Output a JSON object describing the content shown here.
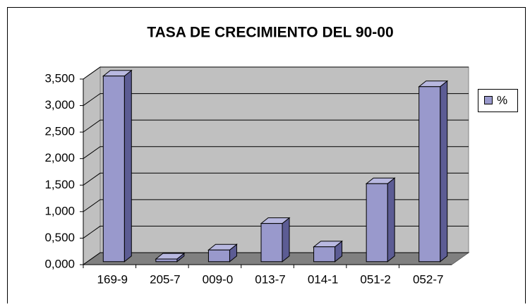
{
  "chart_data": {
    "type": "bar3d",
    "title": "TASA DE CRECIMIENTO DEL 90-00",
    "categories": [
      "169-9",
      "205-7",
      "009-0",
      "013-7",
      "014-1",
      "051-2",
      "052-7"
    ],
    "series": [
      {
        "name": "%",
        "color": "#9999cc",
        "values": [
          3.5,
          0.05,
          0.22,
          0.72,
          0.28,
          1.47,
          3.3
        ]
      }
    ],
    "ylim": [
      0,
      3.5
    ],
    "yticks": [
      {
        "value": 0,
        "label": "0,000"
      },
      {
        "value": 0.5,
        "label": "0,500"
      },
      {
        "value": 1,
        "label": "1,000"
      },
      {
        "value": 1.5,
        "label": "1,500"
      },
      {
        "value": 2,
        "label": "2,000"
      },
      {
        "value": 2.5,
        "label": "2,500"
      },
      {
        "value": 3,
        "label": "3,000"
      },
      {
        "value": 3.5,
        "label": "3,500"
      }
    ],
    "grid": true,
    "legend": "right"
  }
}
